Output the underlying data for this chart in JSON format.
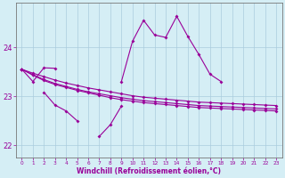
{
  "xlabel": "Windchill (Refroidissement éolien,°C)",
  "color": "#990099",
  "bg_color": "#d5eef5",
  "grid_color": "#aaccdd",
  "ylim": [
    21.75,
    24.9
  ],
  "yticks": [
    22,
    23,
    24
  ],
  "xlim": [
    -0.5,
    23.5
  ],
  "hours": [
    0,
    1,
    2,
    3,
    4,
    5,
    6,
    7,
    8,
    9,
    10,
    11,
    12,
    13,
    14,
    15,
    16,
    17,
    18,
    19,
    20,
    21,
    22,
    23
  ],
  "line_spiky": [
    23.55,
    23.3,
    23.58,
    23.57,
    null,
    null,
    null,
    null,
    null,
    23.3,
    24.12,
    24.55,
    24.25,
    24.2,
    24.63,
    24.22,
    23.85,
    23.45,
    23.3,
    null,
    null,
    null,
    null,
    null
  ],
  "line_dip": [
    23.55,
    null,
    23.08,
    22.82,
    22.7,
    22.5,
    null,
    22.18,
    22.42,
    22.8,
    null,
    null,
    null,
    null,
    null,
    null,
    null,
    null,
    null,
    null,
    null,
    null,
    null,
    null
  ],
  "line_a": [
    23.55,
    23.43,
    23.32,
    23.24,
    23.18,
    23.12,
    23.07,
    23.02,
    22.97,
    22.93,
    22.9,
    22.87,
    22.85,
    22.83,
    22.81,
    22.79,
    22.77,
    22.76,
    22.75,
    22.74,
    22.73,
    22.72,
    22.71,
    22.7
  ],
  "line_b": [
    23.55,
    23.44,
    23.34,
    23.26,
    23.2,
    23.14,
    23.09,
    23.05,
    23.01,
    22.97,
    22.94,
    22.91,
    22.89,
    22.87,
    22.85,
    22.83,
    22.81,
    22.8,
    22.79,
    22.78,
    22.77,
    22.76,
    22.75,
    22.74
  ],
  "line_c": [
    23.55,
    23.47,
    23.4,
    23.33,
    23.27,
    23.22,
    23.17,
    23.13,
    23.09,
    23.05,
    23.01,
    22.98,
    22.96,
    22.94,
    22.92,
    22.9,
    22.88,
    22.87,
    22.86,
    22.85,
    22.84,
    22.83,
    22.82,
    22.81
  ]
}
